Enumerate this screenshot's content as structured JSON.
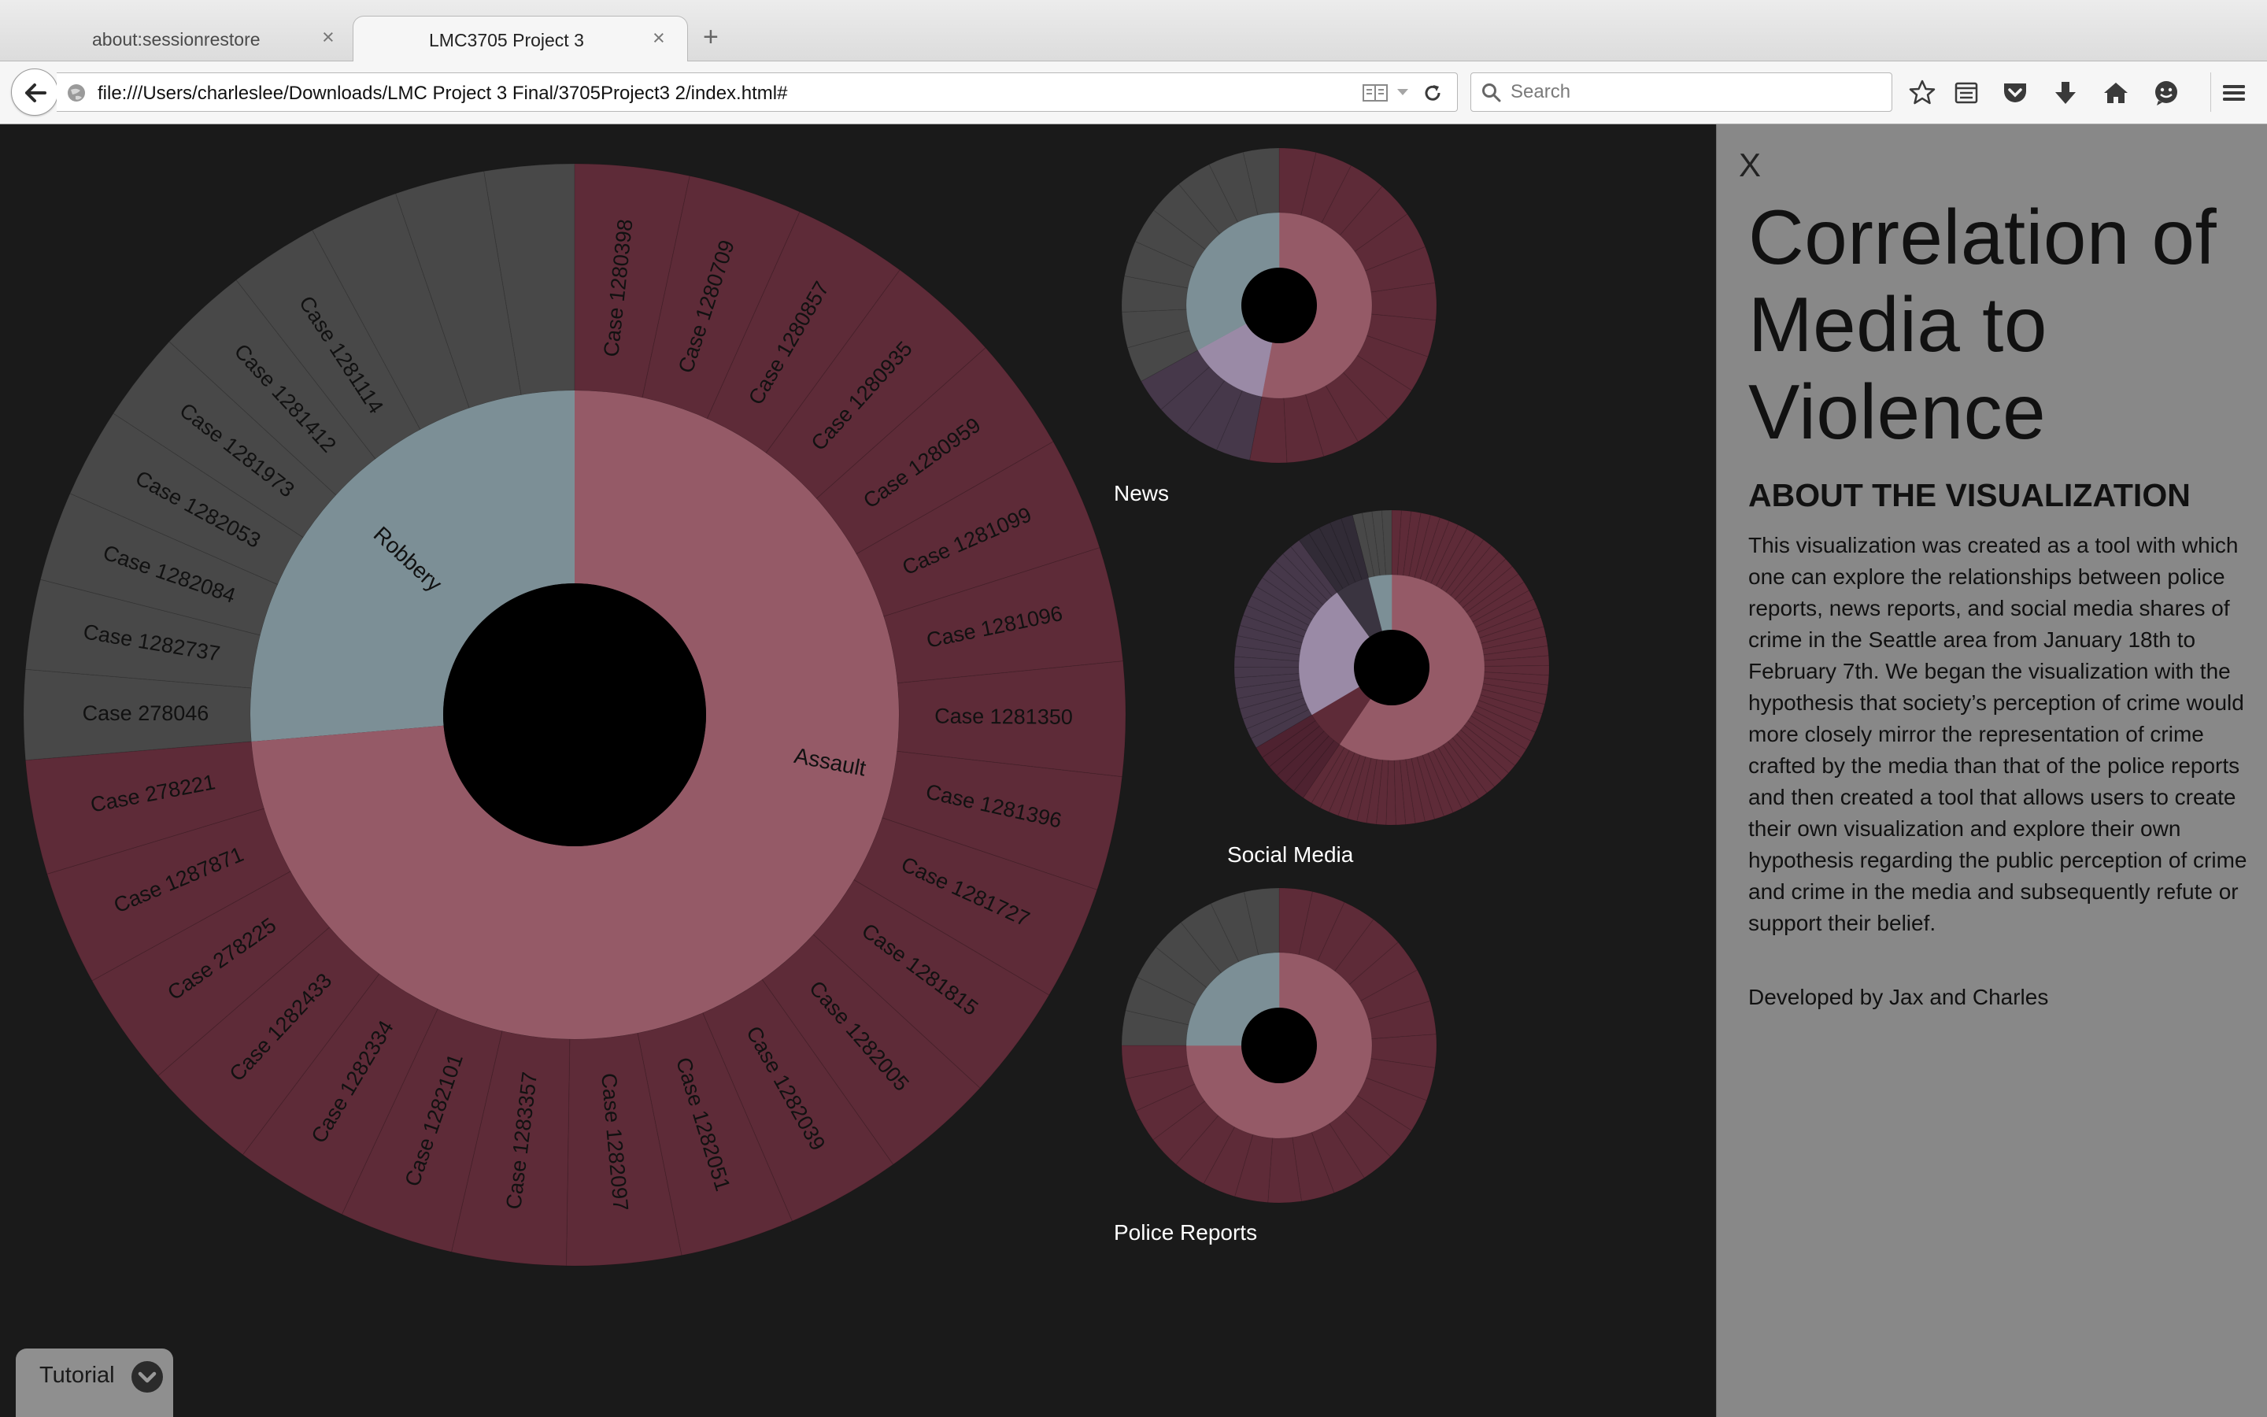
{
  "browser": {
    "tabs": [
      {
        "label": "about:sessionrestore",
        "close": "×"
      },
      {
        "label": "LMC3705 Project 3",
        "close": "×"
      }
    ],
    "new_tab": "+",
    "url": "file:///Users/charleslee/Downloads/LMC Project 3 Final/3705Project3 2/index.html#",
    "search_placeholder": "Search",
    "toolbar_icons": [
      "star-icon",
      "reading-list-icon",
      "pocket-icon",
      "download-icon",
      "home-icon",
      "hello-icon",
      "menu-icon"
    ]
  },
  "colors": {
    "background": "#1a1a1a",
    "assault_inner": "#955a67",
    "assault_outer": "#5e2b38",
    "robbery_inner": "#7c8f96",
    "robbery_outer": "#484848",
    "extra_inner": "#9a8aa6",
    "extra_outer": "#46384a",
    "center": "#000000"
  },
  "main_chart": {
    "inner_segments": [
      {
        "label": "Robbery",
        "count": 10,
        "kind": "robbery"
      },
      {
        "label": "Assault",
        "count": 28,
        "kind": "assault"
      }
    ],
    "robbery_cases": [
      "Case 278046",
      "Case 1282737",
      "Case 1282084",
      "Case 1282053",
      "Case 1281973",
      "Case 1281412",
      "Case 1281114"
    ],
    "assault_cases": [
      "Case 1280398",
      "Case 1280709",
      "Case 1280857",
      "Case 1280935",
      "Case 1280959",
      "Case 1281099",
      "Case 1281096",
      "Case 1281350",
      "Case 1281396",
      "Case 1281727",
      "Case 1281815",
      "Case 1282005",
      "Case 1282039",
      "Case 1282051",
      "Case 1282097",
      "Case 1283357",
      "Case 1282101",
      "Case 1282334",
      "Case 1282433",
      "Case 278225",
      "Case 1287871",
      "Case 278221"
    ]
  },
  "small_charts": [
    {
      "label": "News",
      "segments": [
        {
          "kind": "assault",
          "fraction": 0.53,
          "children": 14
        },
        {
          "kind": "extra",
          "fraction": 0.14,
          "children": 4
        },
        {
          "kind": "robbery",
          "fraction": 0.33,
          "children": 9
        }
      ]
    },
    {
      "label": "Social Media",
      "segments": [
        {
          "kind": "assault",
          "fraction": 0.595,
          "children": 60
        },
        {
          "kind": "assault_dark",
          "fraction": 0.07,
          "children": 6
        },
        {
          "kind": "extra",
          "fraction": 0.235,
          "children": 22
        },
        {
          "kind": "extra_dark",
          "fraction": 0.06,
          "children": 5
        },
        {
          "kind": "robbery",
          "fraction": 0.04,
          "children": 4
        }
      ]
    },
    {
      "label": "Police Reports",
      "segments": [
        {
          "kind": "assault",
          "fraction": 0.75,
          "children": 22
        },
        {
          "kind": "robbery",
          "fraction": 0.25,
          "children": 7
        }
      ]
    }
  ],
  "panel": {
    "close": "X",
    "title": "Correlation of Media to Violence",
    "heading": "ABOUT THE VISUALIZATION",
    "body": "This visualization was created as a tool with which one can explore the relationships between police reports, news reports, and social media shares of crime in the Seattle area from January 18th to February 7th. We began the visualization with the hypothesis that society’s perception of crime would more closely mirror the representation of crime crafted by the media than that of the police reports and then created a tool that allows users to create their own visualization and explore their own hypothesis regarding the public perception of crime and crime in the media and subsequently refute or support their belief.",
    "credits": "Developed by Jax and Charles"
  },
  "tutorial": {
    "label": "Tutorial"
  }
}
